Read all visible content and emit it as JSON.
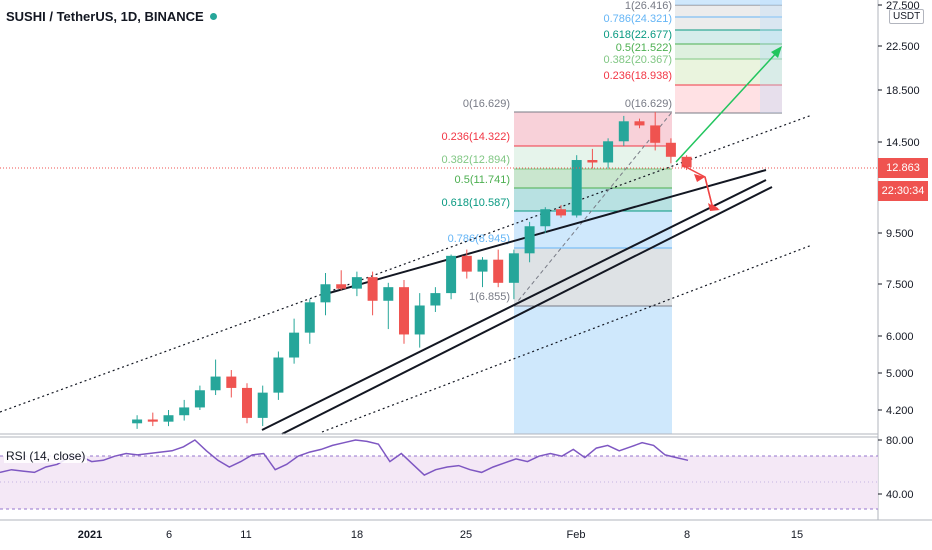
{
  "header": {
    "symbol_title": "SUSHI / TetherUS, 1D, BINANCE",
    "currency": "USDT"
  },
  "price_axis": {
    "ticks": [
      "27.500",
      "22.500",
      "18.500",
      "14.500",
      "9.500",
      "7.500",
      "6.000",
      "5.000",
      "4.200"
    ],
    "current_price": "12.863",
    "countdown": "22:30:34"
  },
  "date_axis": {
    "ticks": [
      "2021",
      "6",
      "11",
      "18",
      "25",
      "Feb",
      "8",
      "15"
    ]
  },
  "rsi": {
    "label": "RSI (14, close)",
    "ticks": [
      "80.00",
      "40.00"
    ],
    "values": [
      56,
      58,
      57,
      56,
      60,
      62,
      67,
      68,
      64,
      65,
      68,
      70,
      69,
      70,
      71,
      72,
      75,
      80,
      72,
      65,
      60,
      64,
      69,
      70,
      58,
      62,
      68,
      71,
      73,
      76,
      78,
      80,
      79,
      77,
      64,
      70,
      62,
      54,
      58,
      60,
      61,
      58,
      56,
      60,
      63,
      66,
      64,
      68,
      70,
      68,
      73,
      67,
      74,
      76,
      72,
      75,
      78,
      76,
      69,
      67,
      65
    ]
  },
  "fib_upper": {
    "levels": [
      {
        "label": "1(26.416)",
        "color": "#787b86"
      },
      {
        "label": "0.786(24.321)",
        "color": "#64b5f6"
      },
      {
        "label": "0.618(22.677)",
        "color": "#089981"
      },
      {
        "label": "0.5(21.522)",
        "color": "#4caf50"
      },
      {
        "label": "0.382(20.367)",
        "color": "#81c784"
      },
      {
        "label": "0.236(18.938)",
        "color": "#f23645"
      }
    ]
  },
  "fib_lower": {
    "levels": [
      {
        "label": "0(16.629)",
        "label_right": "0(16.629)",
        "color": "#787b86"
      },
      {
        "label": "0.236(14.322)",
        "color": "#f23645"
      },
      {
        "label": "0.382(12.894)",
        "color": "#81c784"
      },
      {
        "label": "0.5(11.741)",
        "color": "#4caf50"
      },
      {
        "label": "0.618(10.587)",
        "color": "#089981"
      },
      {
        "label": "0.786(8.945)",
        "color": "#64b5f6"
      },
      {
        "label": "1(6.855)",
        "color": "#787b86"
      }
    ]
  },
  "colors": {
    "up": "#26a69a",
    "down": "#ef5350",
    "projection_up": "#22c55e",
    "projection_down": "#ef4444"
  },
  "chart_data": {
    "type": "candlestick",
    "title": "SUSHI / TetherUS, 1D, BINANCE",
    "x_unit": "days from 2021-01-01 (tick labels: 2021, 6, 11, 18, 25, Feb, 8, 15)",
    "y_scale": "log",
    "ylim": [
      3.9,
      28.5
    ],
    "candles": [
      {
        "d": 4,
        "o": 3.95,
        "h": 4.1,
        "l": 3.85,
        "c": 4.02
      },
      {
        "d": 5,
        "o": 4.02,
        "h": 4.15,
        "l": 3.9,
        "c": 3.98
      },
      {
        "d": 6,
        "o": 3.98,
        "h": 4.2,
        "l": 3.9,
        "c": 4.1
      },
      {
        "d": 7,
        "o": 4.1,
        "h": 4.4,
        "l": 4.0,
        "c": 4.25
      },
      {
        "d": 8,
        "o": 4.25,
        "h": 4.7,
        "l": 4.2,
        "c": 4.6
      },
      {
        "d": 9,
        "o": 4.6,
        "h": 5.3,
        "l": 4.5,
        "c": 4.9
      },
      {
        "d": 10,
        "o": 4.9,
        "h": 5.05,
        "l": 4.45,
        "c": 4.65
      },
      {
        "d": 11,
        "o": 4.65,
        "h": 4.75,
        "l": 3.95,
        "c": 4.05
      },
      {
        "d": 12,
        "o": 4.05,
        "h": 4.7,
        "l": 3.9,
        "c": 4.55
      },
      {
        "d": 13,
        "o": 4.55,
        "h": 5.5,
        "l": 4.4,
        "c": 5.35
      },
      {
        "d": 14,
        "o": 5.35,
        "h": 6.4,
        "l": 5.2,
        "c": 6.0
      },
      {
        "d": 15,
        "o": 6.0,
        "h": 7.0,
        "l": 5.7,
        "c": 6.9
      },
      {
        "d": 16,
        "o": 6.9,
        "h": 7.9,
        "l": 6.5,
        "c": 7.5
      },
      {
        "d": 17,
        "o": 7.5,
        "h": 8.0,
        "l": 7.3,
        "c": 7.35
      },
      {
        "d": 18,
        "o": 7.35,
        "h": 7.95,
        "l": 7.1,
        "c": 7.75
      },
      {
        "d": 19,
        "o": 7.75,
        "h": 7.95,
        "l": 6.5,
        "c": 6.95
      },
      {
        "d": 20,
        "o": 6.95,
        "h": 7.55,
        "l": 6.1,
        "c": 7.4
      },
      {
        "d": 21,
        "o": 7.4,
        "h": 7.65,
        "l": 5.7,
        "c": 5.95
      },
      {
        "d": 22,
        "o": 5.95,
        "h": 7.2,
        "l": 5.6,
        "c": 6.8
      },
      {
        "d": 23,
        "o": 6.8,
        "h": 7.4,
        "l": 6.6,
        "c": 7.2
      },
      {
        "d": 24,
        "o": 7.2,
        "h": 8.6,
        "l": 7.0,
        "c": 8.55
      },
      {
        "d": 25,
        "o": 8.55,
        "h": 8.8,
        "l": 7.7,
        "c": 7.95
      },
      {
        "d": 26,
        "o": 7.95,
        "h": 8.5,
        "l": 7.4,
        "c": 8.4
      },
      {
        "d": 27,
        "o": 8.4,
        "h": 8.8,
        "l": 7.4,
        "c": 7.55
      },
      {
        "d": 28,
        "o": 7.55,
        "h": 8.8,
        "l": 7.0,
        "c": 8.65
      },
      {
        "d": 29,
        "o": 8.65,
        "h": 10.0,
        "l": 8.3,
        "c": 9.8
      },
      {
        "d": 30,
        "o": 9.8,
        "h": 10.7,
        "l": 9.5,
        "c": 10.6
      },
      {
        "d": 31,
        "o": 10.6,
        "h": 10.8,
        "l": 10.2,
        "c": 10.3
      },
      {
        "d": 32,
        "o": 10.3,
        "h": 13.6,
        "l": 10.2,
        "c": 13.3
      },
      {
        "d": 33,
        "o": 13.3,
        "h": 14.0,
        "l": 12.8,
        "c": 13.15
      },
      {
        "d": 34,
        "o": 13.15,
        "h": 14.7,
        "l": 12.8,
        "c": 14.5
      },
      {
        "d": 35,
        "o": 14.5,
        "h": 16.3,
        "l": 14.2,
        "c": 15.9
      },
      {
        "d": 36,
        "o": 15.9,
        "h": 16.1,
        "l": 15.4,
        "c": 15.6
      },
      {
        "d": 37,
        "o": 15.6,
        "h": 16.6,
        "l": 13.9,
        "c": 14.4
      },
      {
        "d": 38,
        "o": 14.4,
        "h": 14.7,
        "l": 13.1,
        "c": 13.5
      },
      {
        "d": 39,
        "o": 13.5,
        "h": 13.6,
        "l": 12.7,
        "c": 12.86
      }
    ]
  }
}
